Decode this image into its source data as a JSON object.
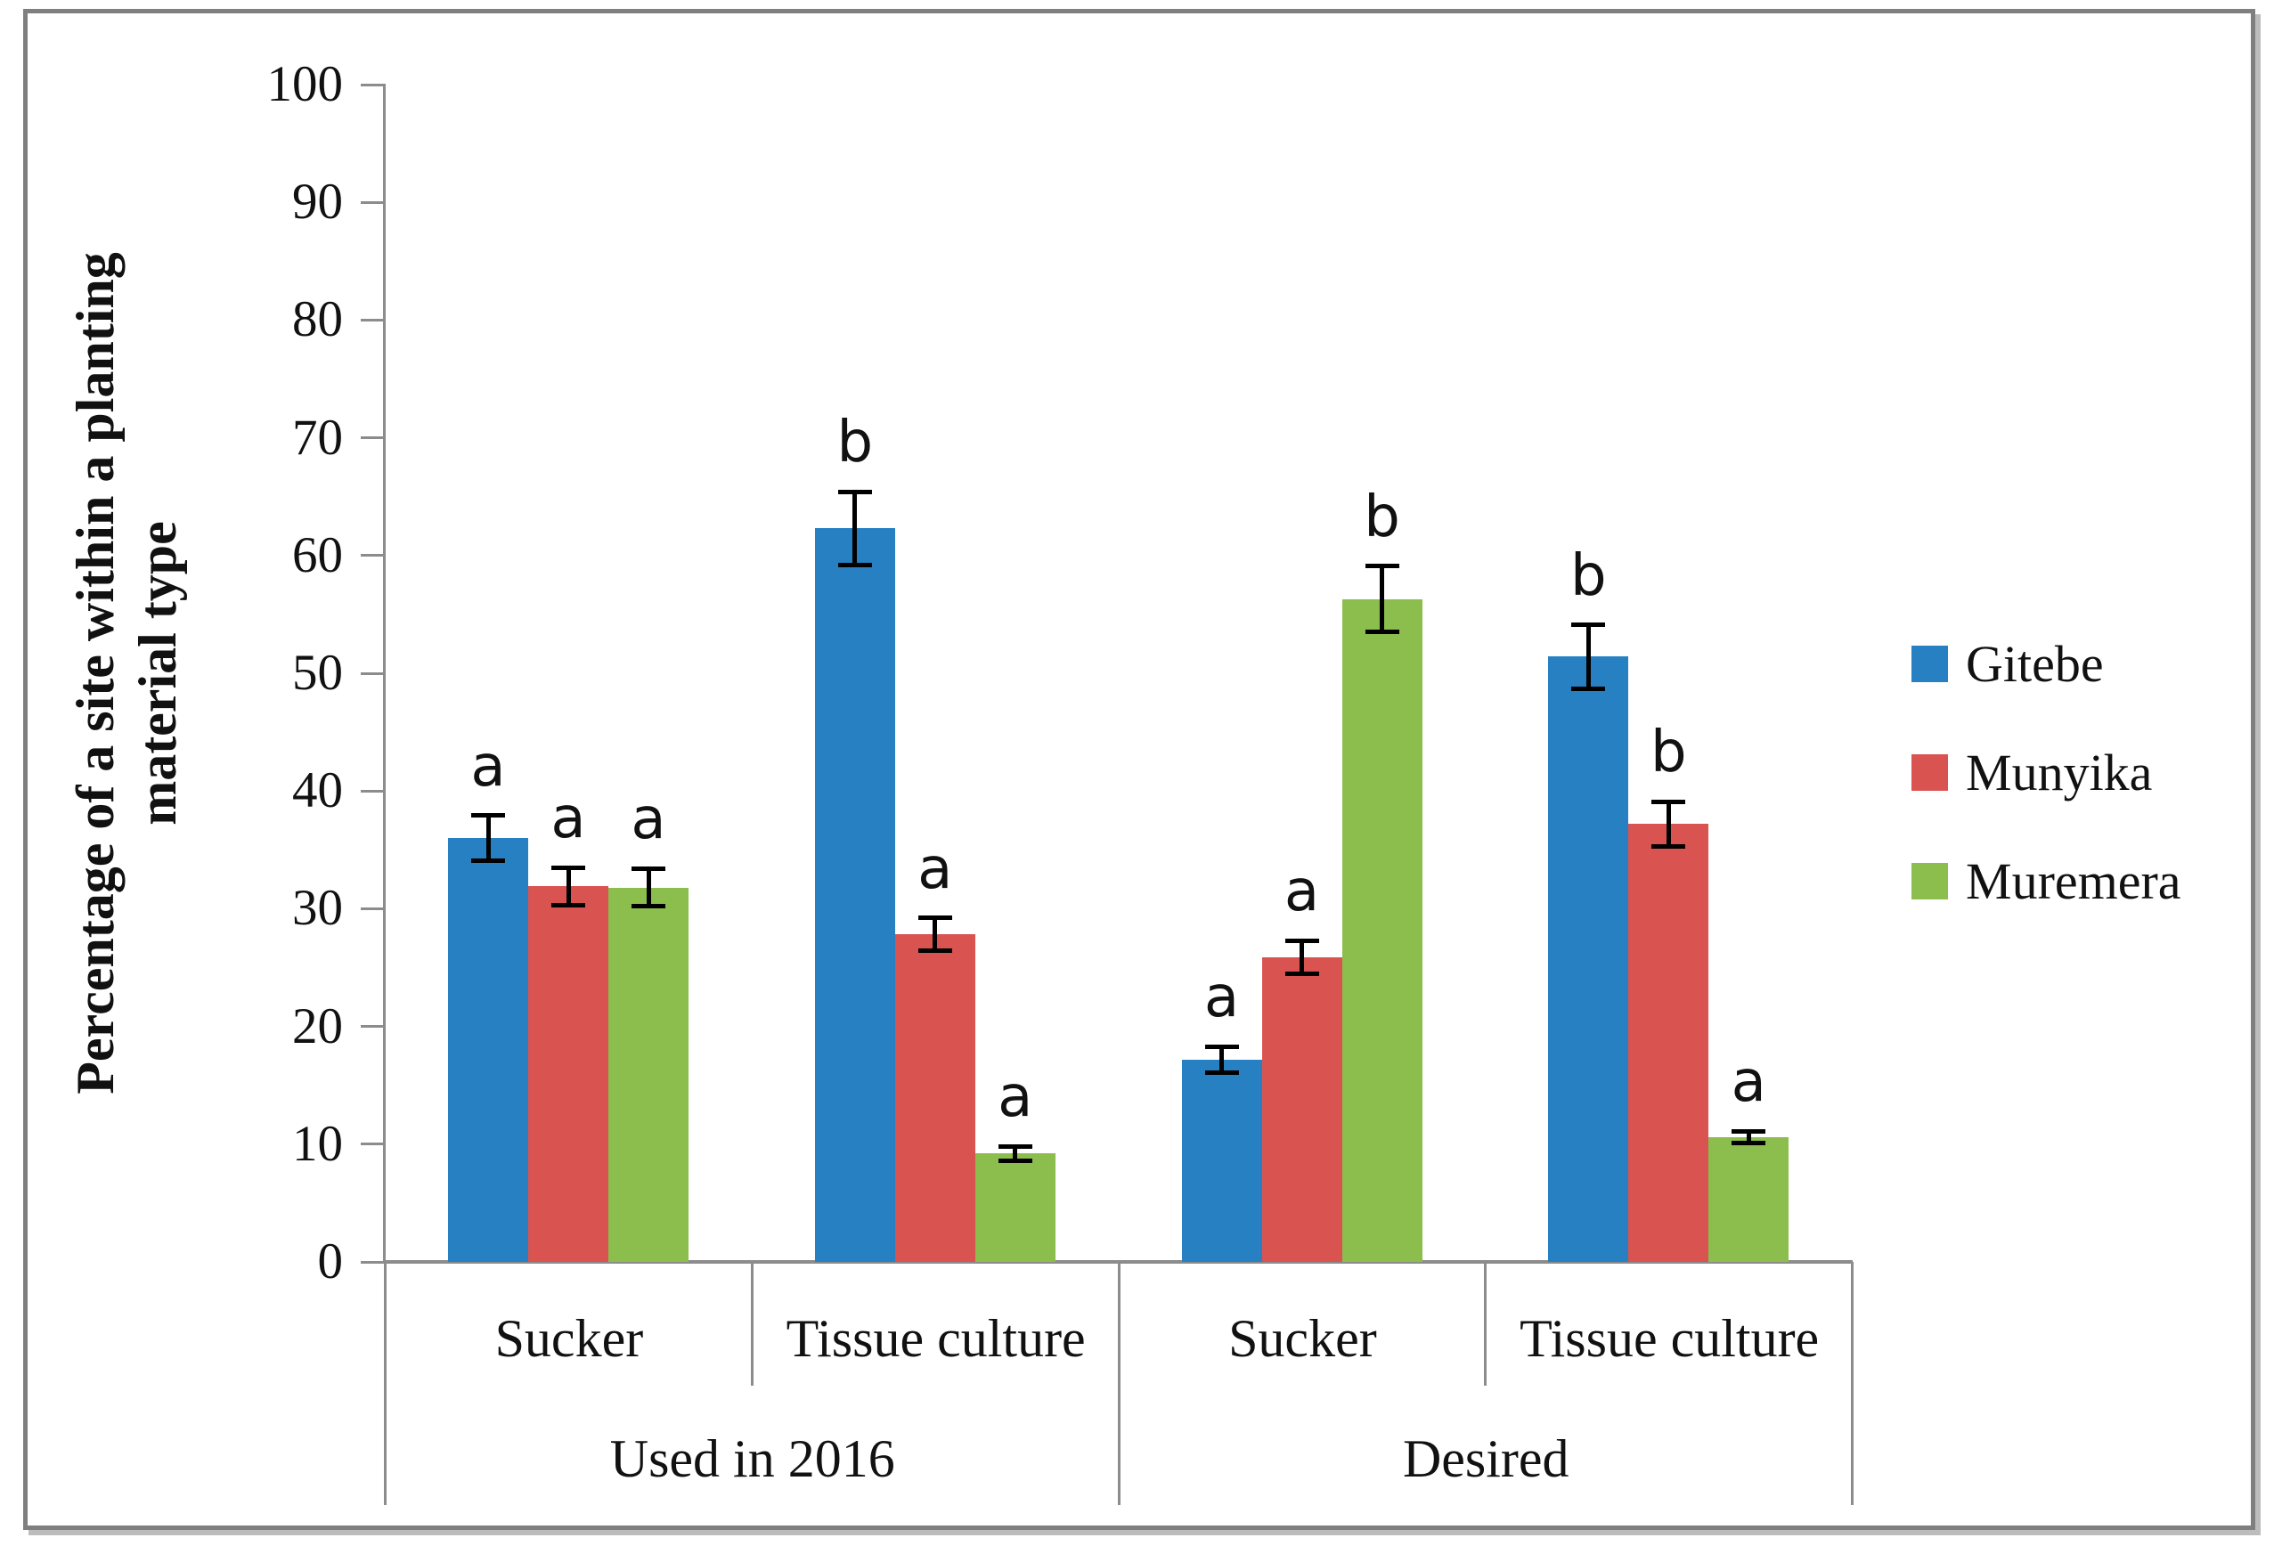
{
  "figure": {
    "background_color": "#ffffff",
    "border_color": "#7f7f7f"
  },
  "chart_data": {
    "type": "bar",
    "title": "",
    "ylabel": "Percentage of a site within a planting material type",
    "ylabel_lines": [
      "Percentage of a site within a planting",
      "material type"
    ],
    "xlabel": "",
    "grid": false,
    "legend_position": "right",
    "y_axis": {
      "min": 0,
      "max": 100,
      "step": 10,
      "ticks": [
        0,
        10,
        20,
        30,
        40,
        50,
        60,
        70,
        80,
        90,
        100
      ]
    },
    "x_axis": {
      "groups": [
        {
          "label": "Used in 2016",
          "subcategories": [
            "Sucker",
            "Tissue culture"
          ]
        },
        {
          "label": "Desired",
          "subcategories": [
            "Sucker",
            "Tissue culture"
          ]
        }
      ]
    },
    "categories": [
      "Used in 2016 / Sucker",
      "Used in 2016 / Tissue culture",
      "Desired / Sucker",
      "Desired / Tissue culture"
    ],
    "series": [
      {
        "name": "Gitebe",
        "color": "#2680C2",
        "values": [
          36.0,
          62.3,
          17.2,
          51.4
        ],
        "errors": [
          1.9,
          3.1,
          1.1,
          2.7
        ],
        "letters": [
          "a",
          "b",
          "a",
          "b"
        ]
      },
      {
        "name": "Munyika",
        "color": "#D95351",
        "values": [
          31.9,
          27.8,
          25.9,
          37.2
        ],
        "errors": [
          1.6,
          1.4,
          1.4,
          1.9
        ],
        "letters": [
          "a",
          "a",
          "a",
          "b"
        ]
      },
      {
        "name": "Muremera",
        "color": "#8BBE4D",
        "values": [
          31.8,
          9.2,
          56.3,
          10.6
        ],
        "errors": [
          1.6,
          0.6,
          2.8,
          0.5
        ],
        "letters": [
          "a",
          "a",
          "b",
          "a"
        ]
      }
    ],
    "error_bar_color": "#000000",
    "axis_line_color": "#8c8c8c"
  }
}
